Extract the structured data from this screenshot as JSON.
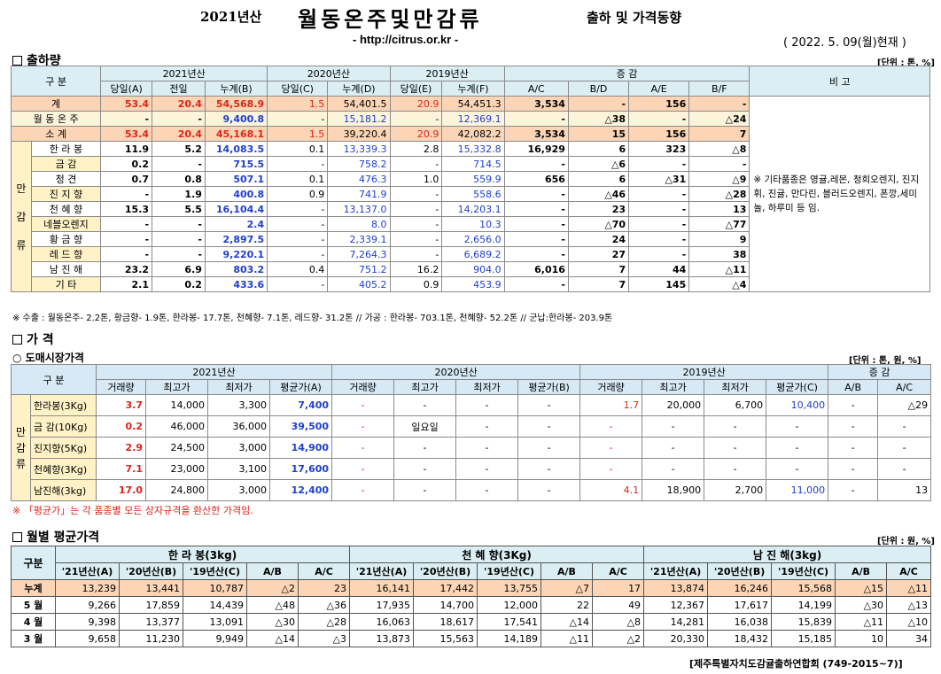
{
  "header": {
    "year": "2021년산",
    "title": "월동온주및만감류",
    "subtitle": "출하 및 가격동향",
    "url": "- http://citrus.or.kr -",
    "date": "( 2022. 5. 09(월)현재 )"
  },
  "shipment": {
    "section_title": "출하량",
    "unit": "[단위 : 톤, %]",
    "head": {
      "gubun": "구 분",
      "y2021": "2021년산",
      "y2020": "2020년산",
      "y2019": "2019년산",
      "change": "증 감",
      "remarks": "비 고",
      "sub": [
        "당일(A)",
        "전일",
        "누계(B)",
        "당일(C)",
        "누계(D)",
        "당일(E)",
        "누계(F)",
        "A/C",
        "B/D",
        "A/E",
        "B/F"
      ]
    },
    "group_label": [
      "만",
      "감",
      "류"
    ],
    "rows": [
      {
        "name": "계",
        "v": [
          "53.4",
          "20.4",
          "54,568.9",
          "1.5",
          "54,401.5",
          "20.9",
          "54,451.3",
          "3,534",
          "-",
          "156",
          "-"
        ]
      },
      {
        "name": "월 동 온 주",
        "v": [
          "-",
          "-",
          "9,400.8",
          "-",
          "15,181.2",
          "-",
          "12,369.1",
          "-",
          "△38",
          "-",
          "△24"
        ]
      },
      {
        "name": "소 계",
        "v": [
          "53.4",
          "20.4",
          "45,168.1",
          "1.5",
          "39,220.4",
          "20.9",
          "42,082.2",
          "3,534",
          "15",
          "156",
          "7"
        ]
      },
      {
        "name": "한 라 봉",
        "v": [
          "11.9",
          "5.2",
          "14,083.5",
          "0.1",
          "13,339.3",
          "2.8",
          "15,332.8",
          "16,929",
          "6",
          "323",
          "△8"
        ]
      },
      {
        "name": "금 감",
        "v": [
          "0.2",
          "-",
          "715.5",
          "-",
          "758.2",
          "-",
          "714.5",
          "-",
          "△6",
          "-",
          "-"
        ]
      },
      {
        "name": "청 견",
        "v": [
          "0.7",
          "0.8",
          "507.1",
          "0.1",
          "476.3",
          "1.0",
          "559.9",
          "656",
          "6",
          "△31",
          "△9"
        ]
      },
      {
        "name": "진 지 향",
        "v": [
          "-",
          "1.9",
          "400.8",
          "0.9",
          "741.9",
          "-",
          "558.6",
          "-",
          "△46",
          "-",
          "△28"
        ]
      },
      {
        "name": "천 혜 향",
        "v": [
          "15.3",
          "5.5",
          "16,104.4",
          "-",
          "13,137.0",
          "-",
          "14,203.1",
          "-",
          "23",
          "-",
          "13"
        ]
      },
      {
        "name": "네블오렌지",
        "v": [
          "-",
          "-",
          "2.4",
          "-",
          "8.0",
          "-",
          "10.3",
          "-",
          "△70",
          "-",
          "△77"
        ]
      },
      {
        "name": "황 금 향",
        "v": [
          "-",
          "-",
          "2,897.5",
          "-",
          "2,339.1",
          "-",
          "2,656.0",
          "-",
          "24",
          "-",
          "9"
        ]
      },
      {
        "name": "레 드 향",
        "v": [
          "-",
          "-",
          "9,220.1",
          "-",
          "7,264.3",
          "-",
          "6,689.2",
          "-",
          "27",
          "-",
          "38"
        ]
      },
      {
        "name": "남 진 해",
        "v": [
          "23.2",
          "6.9",
          "803.2",
          "0.4",
          "751.2",
          "16.2",
          "904.0",
          "6,016",
          "7",
          "44",
          "△11"
        ]
      },
      {
        "name": "기 타",
        "v": [
          "2.1",
          "0.2",
          "433.6",
          "-",
          "405.2",
          "0.9",
          "453.9",
          "-",
          "7",
          "145",
          "△4"
        ]
      }
    ],
    "remark_text": "※ 기타품종은 영귤,레몬, 청희오렌지, 진지휘, 진귤, 만다린, 블러드오렌지, 폰깡,세미놀, 하루미 등 임.",
    "footnote": "※ 수출 : 월동온주- 2.2톤, 황금향- 1.9톤, 한라봉- 17.7톤, 천혜향- 7.1톤, 레드향- 31.2톤 // 가공 : 한라봉- 703.1톤, 천혜향- 52.2톤 // 군납:한라봉- 203.9톤"
  },
  "price": {
    "section_title": "가 격",
    "sub_title": "도매시장가격",
    "unit": "[단위 : 톤, 원, %]",
    "head": {
      "gubun": "구 분",
      "y2021": "2021년산",
      "y2020": "2020년산",
      "y2019": "2019년산",
      "change": "증 감",
      "sub": [
        "거래량",
        "최고가",
        "최저가",
        "평균가(A)",
        "거래량",
        "최고가",
        "최저가",
        "평균가(B)",
        "거래량",
        "최고가",
        "최저가",
        "평균가(C)",
        "A/B",
        "A/C"
      ]
    },
    "group_label": [
      "만",
      "감",
      "류"
    ],
    "rows": [
      {
        "name": "한라봉(3Kg)",
        "v": [
          "3.7",
          "14,000",
          "3,300",
          "7,400",
          "-",
          "-",
          "-",
          "-",
          "1.7",
          "20,000",
          "6,700",
          "10,400",
          "-",
          "△29"
        ]
      },
      {
        "name": "금 감(10Kg)",
        "v": [
          "0.2",
          "46,000",
          "36,000",
          "39,500",
          "-",
          "일요일",
          "-",
          "-",
          "-",
          "-",
          "-",
          "-",
          "-",
          "-"
        ]
      },
      {
        "name": "진지향(5Kg)",
        "v": [
          "2.9",
          "24,500",
          "3,000",
          "14,900",
          "-",
          "-",
          "-",
          "-",
          "-",
          "-",
          "-",
          "-",
          "-",
          "-"
        ]
      },
      {
        "name": "천혜향(3Kg)",
        "v": [
          "7.1",
          "23,000",
          "3,100",
          "17,600",
          "-",
          "-",
          "-",
          "-",
          "-",
          "-",
          "-",
          "-",
          "-",
          "-"
        ]
      },
      {
        "name": "남진해(3kg)",
        "v": [
          "17.0",
          "24,800",
          "3,000",
          "12,400",
          "-",
          "-",
          "-",
          "-",
          "4.1",
          "18,900",
          "2,700",
          "11,000",
          "-",
          "13"
        ]
      }
    ],
    "footnote": "※ 「평균가」는 각 품종별 모든 상자규격을 환산한 가격임."
  },
  "monthly": {
    "section_title": "월별 평균가격",
    "unit": "[단위 : 원, %]",
    "head": {
      "gubun": "구분",
      "groups": [
        "한 라 봉(3kg)",
        "천 혜 향(3Kg)",
        "남 진 해(3kg)"
      ],
      "sub": [
        "'21년산(A)",
        "'20년산(B)",
        "'19년산(C)",
        "A/B",
        "A/C"
      ]
    },
    "rows": [
      {
        "name": "누계",
        "v": [
          "13,239",
          "13,441",
          "10,787",
          "△2",
          "23",
          "16,141",
          "17,442",
          "13,755",
          "△7",
          "17",
          "13,874",
          "16,246",
          "15,568",
          "△15",
          "△11"
        ]
      },
      {
        "name": "5 월",
        "v": [
          "9,266",
          "17,859",
          "14,439",
          "△48",
          "△36",
          "17,935",
          "14,700",
          "12,000",
          "22",
          "49",
          "12,367",
          "17,617",
          "14,199",
          "△30",
          "△13"
        ]
      },
      {
        "name": "4 월",
        "v": [
          "9,398",
          "13,377",
          "13,091",
          "△30",
          "△28",
          "16,063",
          "18,617",
          "17,541",
          "△14",
          "△8",
          "14,281",
          "16,038",
          "15,839",
          "△11",
          "△10"
        ]
      },
      {
        "name": "3 월",
        "v": [
          "9,658",
          "11,230",
          "9,949",
          "△14",
          "△3",
          "13,873",
          "15,563",
          "14,189",
          "△11",
          "△2",
          "20,330",
          "18,432",
          "15,185",
          "10",
          "34"
        ]
      }
    ],
    "footer": "[제주특별자치도감귤출하연합회 (749-2015~7)]"
  }
}
